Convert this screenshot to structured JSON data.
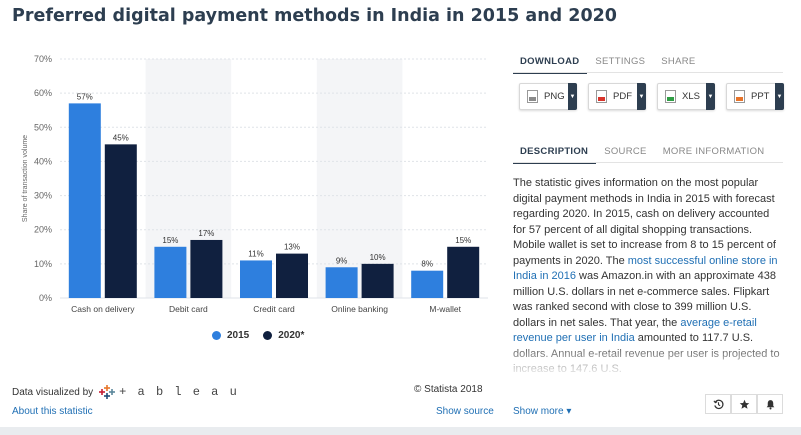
{
  "title": "Preferred digital payment methods in India in 2015 and 2020",
  "chart_data": {
    "type": "bar",
    "ylabel": "Share of transaction volume",
    "ylim": [
      0,
      70
    ],
    "yticks": [
      "0%",
      "10%",
      "20%",
      "30%",
      "40%",
      "50%",
      "60%",
      "70%"
    ],
    "categories": [
      "Cash on delivery",
      "Debit card",
      "Credit card",
      "Online banking",
      "M-wallet"
    ],
    "series": [
      {
        "name": "2015",
        "color": "#2e7fde",
        "values": [
          57,
          15,
          11,
          9,
          8
        ],
        "labels": [
          "57%",
          "15%",
          "11%",
          "9%",
          "8%"
        ]
      },
      {
        "name": "2020*",
        "color": "#10203f",
        "values": [
          45,
          17,
          13,
          10,
          15
        ],
        "labels": [
          "45%",
          "17%",
          "13%",
          "10%",
          "15%"
        ]
      }
    ],
    "legend_position": "bottom",
    "grid": true
  },
  "footer": {
    "visualized_by": "Data visualized by",
    "tableau": "+ a b l e a u",
    "about_link": "About this statistic",
    "copyright": "© Statista 2018",
    "show_source": "Show source"
  },
  "panel": {
    "top_tabs": [
      "DOWNLOAD",
      "SETTINGS",
      "SHARE"
    ],
    "downloads": [
      {
        "label": "PNG",
        "color": "#8a8a8a"
      },
      {
        "label": "PDF",
        "color": "#d9342b"
      },
      {
        "label": "XLS",
        "color": "#2f9e44"
      },
      {
        "label": "PPT",
        "color": "#e8742a"
      }
    ],
    "info_tabs": [
      "DESCRIPTION",
      "SOURCE",
      "MORE INFORMATION"
    ],
    "desc": {
      "p1": "The statistic gives information on the most popular digital payment methods in India in 2015 with forecast regarding 2020. In 2015, cash on delivery accounted for 57 percent of all digital shopping transactions. Mobile wallet is set to increase from 8 to 15 percent of payments in 2020. The ",
      "link1": "most successful online store in India in 2016",
      "p2": " was Amazon.in with an approximate 438 million U.S. dollars in net e-commerce sales. Flipkart was ranked second with close to 399 million U.S. dollars in net sales. That year, the ",
      "link2": "average e-retail revenue per user in India",
      "p3": " amounted to 117.7 U.S. dollars. Annual e-retail revenue per user is projected to increase to 147.6 U.S."
    },
    "show_more": "Show more ▾",
    "icons": [
      "history-icon",
      "star-icon",
      "bell-icon"
    ]
  }
}
